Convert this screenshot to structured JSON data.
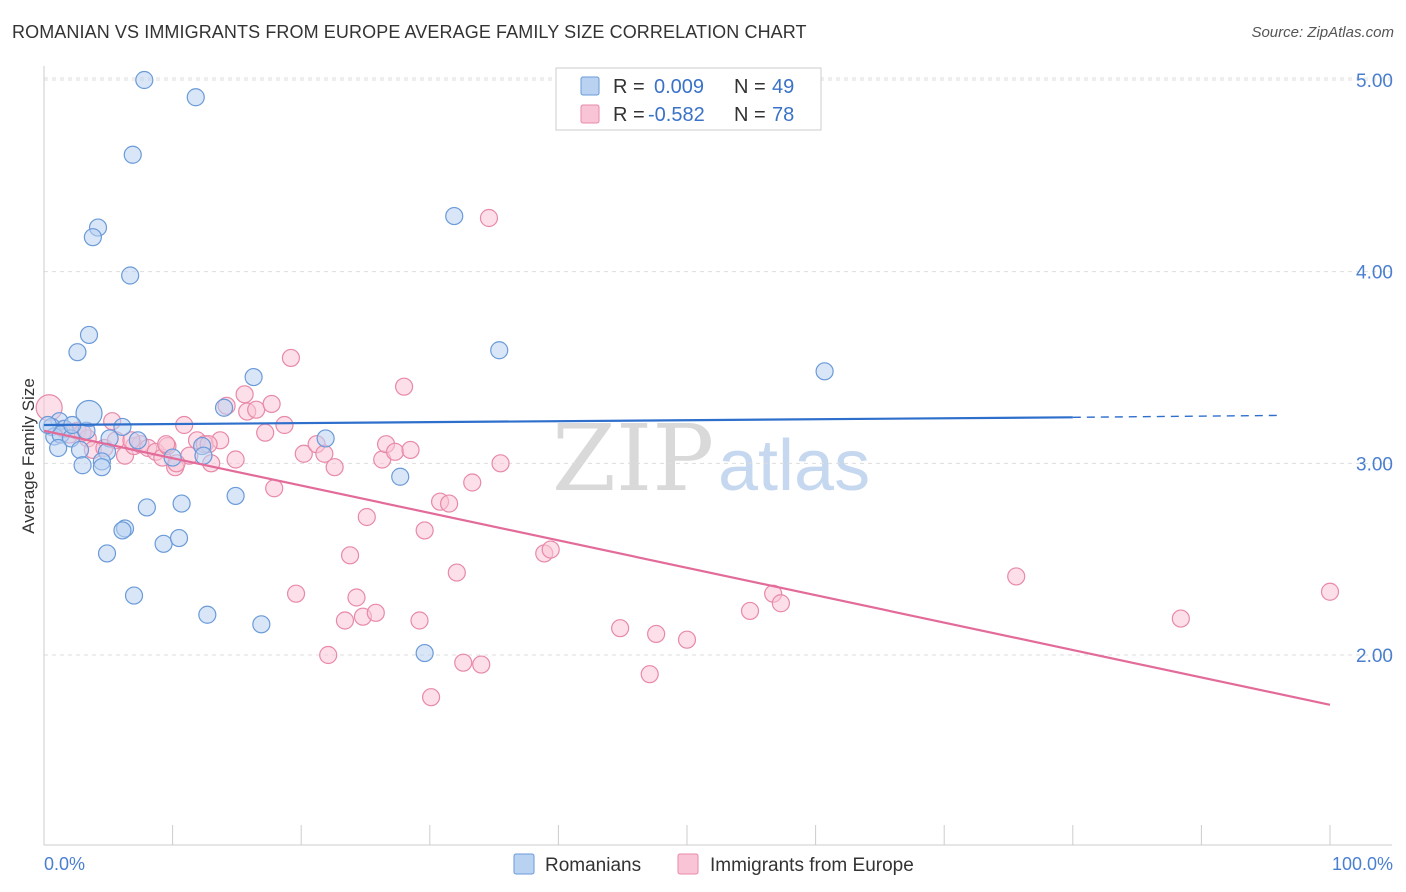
{
  "title": "ROMANIAN VS IMMIGRANTS FROM EUROPE AVERAGE FAMILY SIZE CORRELATION CHART",
  "source": "Source: ZipAtlas.com",
  "watermark": {
    "zip": "ZIP",
    "atlas": "atlas"
  },
  "colors": {
    "blue_fill": "#b9d2f2",
    "blue_stroke": "#6a9ad8",
    "blue_line": "#2f6fcc",
    "pink_fill": "#f9c5d6",
    "pink_stroke": "#e889a8",
    "pink_line": "#e36b99",
    "axis_text": "#4a7fd0",
    "grid": "#dddddd"
  },
  "legend": {
    "rows": [
      {
        "r_label": "R =",
        "r_value": "0.009",
        "n_label": "N =",
        "n_value": "49"
      },
      {
        "r_label": "R =",
        "r_value": "-0.582",
        "n_label": "N =",
        "n_value": "78"
      }
    ]
  },
  "chart_data": {
    "type": "scatter",
    "title": "ROMANIAN VS IMMIGRANTS FROM EUROPE AVERAGE FAMILY SIZE CORRELATION CHART",
    "xlabel": "",
    "ylabel": "Average Family Size",
    "xlim": [
      0,
      100
    ],
    "ylim": [
      1.0,
      5.2
    ],
    "x_tick_labels": [
      "0.0%",
      "100.0%"
    ],
    "y_ticks": [
      2.0,
      3.0,
      4.0,
      5.0
    ],
    "y_tick_labels": [
      "2.00",
      "3.00",
      "4.00",
      "5.00"
    ],
    "grid": true,
    "legend_position": "top-center",
    "series": [
      {
        "name": "Romanians",
        "color": "#6a9ad8",
        "r": 0.009,
        "n": 49,
        "trend": {
          "x0": 0,
          "y0": 3.2,
          "x1": 80,
          "y1": 3.24,
          "dashed_to_x": 96,
          "dashed_to_y": 3.25
        },
        "points": [
          [
            7.8,
            5.0
          ],
          [
            11.8,
            4.91
          ],
          [
            6.9,
            4.61
          ],
          [
            4.2,
            4.23
          ],
          [
            3.8,
            4.18
          ],
          [
            6.7,
            3.98
          ],
          [
            31.9,
            4.29
          ],
          [
            3.5,
            3.67
          ],
          [
            2.6,
            3.58
          ],
          [
            35.4,
            3.59
          ],
          [
            60.7,
            3.48
          ],
          [
            16.3,
            3.45
          ],
          [
            14.0,
            3.29
          ],
          [
            1.2,
            3.22
          ],
          [
            0.6,
            3.19
          ],
          [
            1.6,
            3.18
          ],
          [
            3.3,
            3.17
          ],
          [
            0.8,
            3.14
          ],
          [
            1.3,
            3.15
          ],
          [
            5.1,
            3.13
          ],
          [
            2.1,
            3.13
          ],
          [
            6.1,
            3.19
          ],
          [
            7.3,
            3.12
          ],
          [
            12.3,
            3.09
          ],
          [
            1.1,
            3.08
          ],
          [
            4.9,
            3.06
          ],
          [
            0.3,
            3.2
          ],
          [
            4.5,
            3.01
          ],
          [
            2.8,
            3.07
          ],
          [
            21.9,
            3.13
          ],
          [
            10.0,
            3.03
          ],
          [
            12.4,
            3.04
          ],
          [
            4.5,
            2.98
          ],
          [
            27.7,
            2.93
          ],
          [
            3.0,
            2.99
          ],
          [
            14.9,
            2.83
          ],
          [
            10.7,
            2.79
          ],
          [
            8.0,
            2.77
          ],
          [
            6.3,
            2.66
          ],
          [
            6.1,
            2.65
          ],
          [
            9.3,
            2.58
          ],
          [
            10.5,
            2.61
          ],
          [
            4.9,
            2.53
          ],
          [
            7.0,
            2.31
          ],
          [
            12.7,
            2.21
          ],
          [
            16.9,
            2.16
          ],
          [
            29.6,
            2.01
          ],
          [
            3.5,
            3.26
          ],
          [
            2.2,
            3.2
          ]
        ]
      },
      {
        "name": "Immigrants from Europe",
        "color": "#e889a8",
        "r": -0.582,
        "n": 78,
        "trend": {
          "x0": 0,
          "y0": 3.17,
          "x1": 100,
          "y1": 1.74
        },
        "points": [
          [
            0.4,
            3.29
          ],
          [
            1.5,
            3.18
          ],
          [
            2.0,
            3.15
          ],
          [
            2.6,
            3.17
          ],
          [
            3.4,
            3.13
          ],
          [
            3.8,
            3.07
          ],
          [
            4.7,
            3.08
          ],
          [
            5.3,
            3.22
          ],
          [
            5.6,
            3.12
          ],
          [
            6.3,
            3.04
          ],
          [
            7.0,
            3.09
          ],
          [
            7.5,
            3.1
          ],
          [
            8.1,
            3.08
          ],
          [
            8.7,
            3.06
          ],
          [
            9.2,
            3.03
          ],
          [
            9.6,
            3.09
          ],
          [
            10.2,
            2.98
          ],
          [
            10.9,
            3.2
          ],
          [
            11.3,
            3.04
          ],
          [
            11.9,
            3.12
          ],
          [
            12.5,
            3.1
          ],
          [
            13.0,
            3.0
          ],
          [
            13.7,
            3.12
          ],
          [
            14.2,
            3.3
          ],
          [
            14.9,
            3.02
          ],
          [
            15.6,
            3.36
          ],
          [
            15.8,
            3.27
          ],
          [
            16.5,
            3.28
          ],
          [
            17.2,
            3.16
          ],
          [
            17.7,
            3.31
          ],
          [
            17.9,
            2.87
          ],
          [
            18.7,
            3.2
          ],
          [
            19.2,
            3.55
          ],
          [
            19.6,
            2.32
          ],
          [
            20.2,
            3.05
          ],
          [
            21.2,
            3.1
          ],
          [
            21.8,
            3.05
          ],
          [
            22.1,
            2.0
          ],
          [
            22.6,
            2.98
          ],
          [
            23.4,
            2.18
          ],
          [
            23.8,
            2.52
          ],
          [
            24.3,
            2.3
          ],
          [
            25.1,
            2.72
          ],
          [
            24.8,
            2.2
          ],
          [
            25.8,
            2.22
          ],
          [
            26.3,
            3.02
          ],
          [
            26.6,
            3.1
          ],
          [
            27.3,
            3.06
          ],
          [
            28.0,
            3.4
          ],
          [
            28.5,
            3.07
          ],
          [
            29.2,
            2.18
          ],
          [
            29.6,
            2.65
          ],
          [
            30.1,
            1.78
          ],
          [
            30.8,
            2.8
          ],
          [
            31.5,
            2.79
          ],
          [
            32.1,
            2.43
          ],
          [
            32.6,
            1.96
          ],
          [
            33.3,
            2.9
          ],
          [
            34.0,
            1.95
          ],
          [
            34.6,
            4.28
          ],
          [
            35.5,
            3.0
          ],
          [
            38.9,
            2.53
          ],
          [
            39.4,
            2.55
          ],
          [
            44.8,
            2.14
          ],
          [
            47.1,
            1.9
          ],
          [
            47.6,
            2.11
          ],
          [
            50.0,
            2.08
          ],
          [
            54.9,
            2.23
          ],
          [
            56.7,
            2.32
          ],
          [
            57.3,
            2.27
          ],
          [
            75.6,
            2.41
          ],
          [
            88.4,
            2.19
          ],
          [
            100.0,
            2.33
          ],
          [
            9.5,
            3.1
          ],
          [
            10.3,
            3.0
          ],
          [
            12.8,
            3.1
          ],
          [
            6.8,
            3.12
          ],
          [
            3.0,
            3.16
          ]
        ]
      }
    ]
  },
  "bottom_legend": [
    {
      "label": "Romanians"
    },
    {
      "label": "Immigrants from Europe"
    }
  ]
}
